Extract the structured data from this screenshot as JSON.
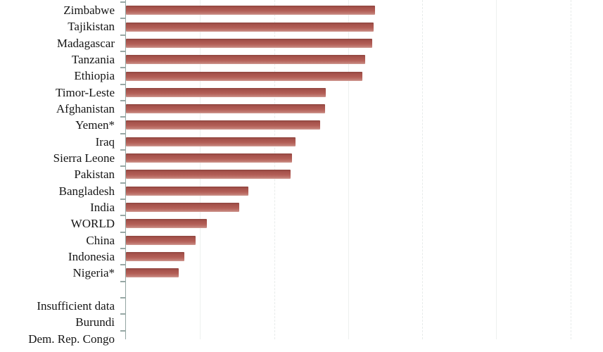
{
  "chart_data": {
    "type": "bar",
    "orientation": "horizontal",
    "categories": [
      "Zimbabwe",
      "Tajikistan",
      "Madagascar",
      "Tanzania",
      "Ethiopia",
      "Timor-Leste",
      "Afghanistan",
      "Yemen*",
      "Iraq",
      "Sierra Leone",
      "Pakistan",
      "Bangladesh",
      "India",
      "WORLD",
      "China",
      "Indonesia",
      "Nigeria*"
    ],
    "values": [
      33.6,
      33.4,
      33.2,
      32.2,
      31.9,
      26.9,
      26.8,
      26.2,
      22.9,
      22.4,
      22.2,
      16.5,
      15.3,
      10.9,
      9.4,
      7.9,
      7.1
    ],
    "insufficient_data_label": "Insufficient data",
    "insufficient_data_categories": [
      "Burundi",
      "Dem. Rep. Congo"
    ],
    "title": "",
    "xlabel": "",
    "ylabel": "",
    "xlim": [
      0,
      64.4
    ],
    "gridline_interval": 10,
    "x_axis_labels_visible": false,
    "values_estimated_from_gridlines": true,
    "legend": "none",
    "grid": "vertical",
    "bar_color": "#b25d55",
    "axis_color": "#93a5a2",
    "gridline_color": "#e9edec",
    "tick_color": "#97a8a5",
    "label_color": "#151515"
  }
}
